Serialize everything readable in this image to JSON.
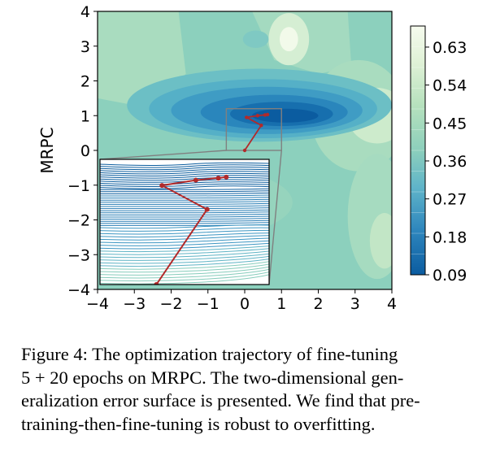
{
  "chart_data": {
    "type": "heatmap",
    "title": "",
    "xlabel": "",
    "ylabel": "MRPC",
    "xlim": [
      -4,
      4
    ],
    "ylim": [
      -4,
      4
    ],
    "x_ticks": [
      "−4",
      "−3",
      "−2",
      "−1",
      "0",
      "1",
      "2",
      "3",
      "4"
    ],
    "y_ticks": [
      "4",
      "3",
      "2",
      "1",
      "0",
      "−1",
      "−2",
      "−3",
      "−4"
    ],
    "colorbar": {
      "range": [
        0.09,
        0.68
      ],
      "ticks": [
        "0.63",
        "0.54",
        "0.45",
        "0.36",
        "0.27",
        "0.18",
        "0.09"
      ]
    },
    "surface_minimum": {
      "x": 1.0,
      "y": 1.0,
      "value": 0.09
    },
    "zoom_box": {
      "x_range": [
        -0.5,
        1.0
      ],
      "y_range": [
        0.0,
        1.2
      ]
    },
    "trajectory": [
      {
        "x": 0.0,
        "y": 0.0
      },
      {
        "x": 0.45,
        "y": 0.72
      },
      {
        "x": 0.05,
        "y": 0.95
      },
      {
        "x": 0.35,
        "y": 1.0
      },
      {
        "x": 0.62,
        "y": 1.03
      },
      {
        "x": 0.55,
        "y": 1.02
      }
    ]
  },
  "caption": {
    "line1": "Figure 4:  The optimization trajectory of fine-tuning",
    "line2": "5 + 20 epochs on MRPC. The two-dimensional gen-",
    "line3": "eralization error surface is presented. We find that pre-",
    "line4": "training-then-fine-tuning is robust to overfitting."
  }
}
